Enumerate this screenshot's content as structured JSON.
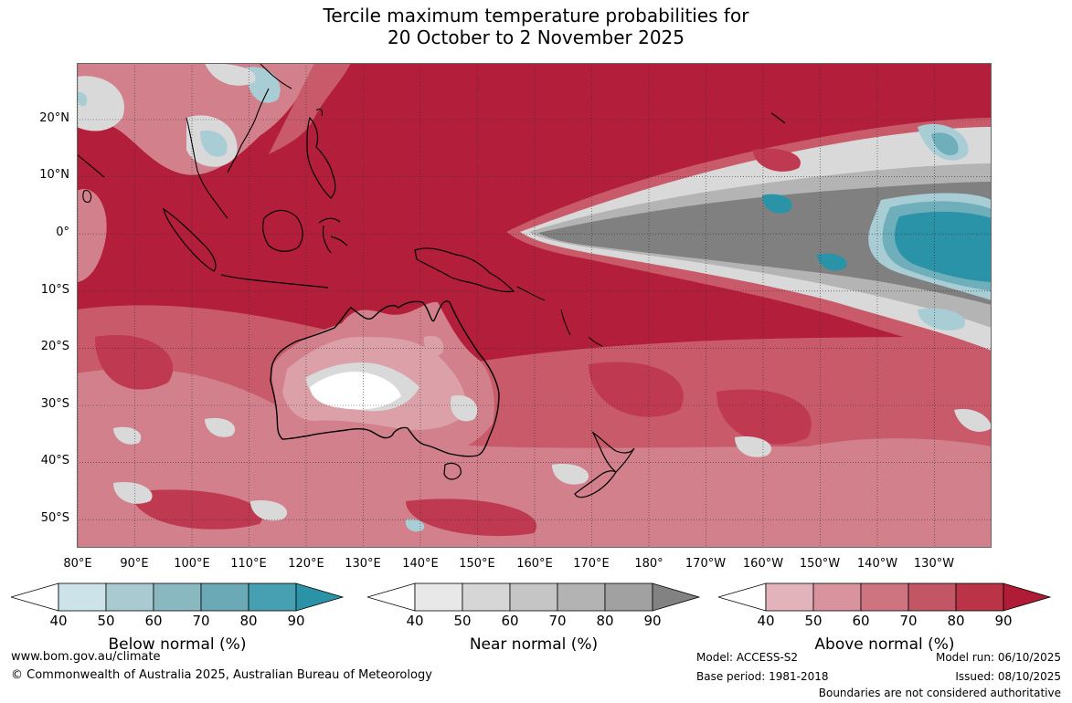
{
  "title": {
    "line1": "Tercile maximum temperature probabilities for",
    "line2": "20 October to 2 November 2025"
  },
  "map": {
    "lat_labels": [
      "20°N",
      "10°N",
      "0°",
      "10°S",
      "20°S",
      "30°S",
      "40°S",
      "50°S"
    ],
    "lon_labels": [
      "80°E",
      "90°E",
      "100°E",
      "110°E",
      "120°E",
      "130°E",
      "140°E",
      "150°E",
      "160°E",
      "170°E",
      "180°",
      "170°W",
      "160°W",
      "150°W",
      "140°W",
      "130°W"
    ],
    "colors": {
      "above_90": "#b31e3a",
      "above_80": "#bf3950",
      "above_70": "#c85a6a",
      "above_60": "#d1808c",
      "above_50": "#dba0a8",
      "near_50": "#d9d9d9",
      "near_70": "#b4b4b4",
      "near_90": "#808080",
      "below_50": "#a9cdd4",
      "below_70": "#6faebb",
      "below_90": "#2a93a8"
    }
  },
  "legends": {
    "below": {
      "label": "Below normal (%)",
      "ticks": [
        "40",
        "50",
        "60",
        "70",
        "80",
        "90"
      ],
      "colors": [
        "#ffffff",
        "#cce3e9",
        "#a9cad0",
        "#8ab8c0",
        "#6aa9b5",
        "#47a0b2",
        "#2a93a8"
      ]
    },
    "near": {
      "label": "Near normal (%)",
      "ticks": [
        "40",
        "50",
        "60",
        "70",
        "80",
        "90"
      ],
      "colors": [
        "#ffffff",
        "#e8e8e8",
        "#d6d6d6",
        "#c5c5c5",
        "#b3b3b3",
        "#a1a1a1",
        "#828282"
      ]
    },
    "above": {
      "label": "Above normal (%)",
      "ticks": [
        "40",
        "50",
        "60",
        "70",
        "80",
        "90"
      ],
      "colors": [
        "#ffffff",
        "#e2b3bb",
        "#d9939e",
        "#cd7480",
        "#c35664",
        "#ba3347",
        "#b01c36"
      ]
    }
  },
  "footer": {
    "website": "www.bom.gov.au/climate",
    "copyright": "© Commonwealth of Australia 2025, Australian Bureau of Meteorology",
    "model": "Model: ACCESS-S2",
    "base_period": "Base period: 1981-2018",
    "model_run": "Model run: 06/10/2025",
    "issued": "Issued: 08/10/2025",
    "boundaries": "Boundaries are not considered authoritative"
  }
}
